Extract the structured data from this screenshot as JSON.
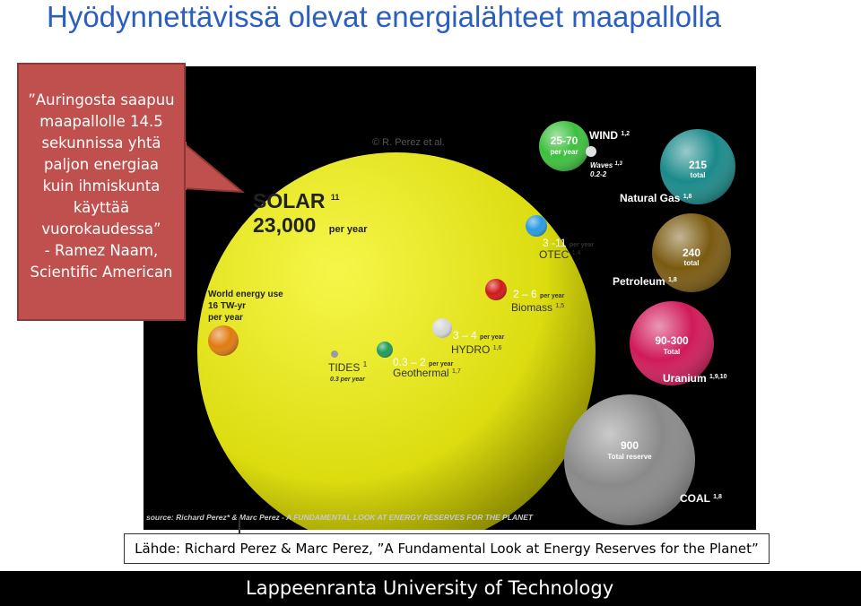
{
  "slide": {
    "title": "Hyödynnettävissä olevat energialähteet maapallolla",
    "callout": {
      "lines": [
        "”Auringosta saapuu",
        "maapallolle 14.5",
        "sekunnissa yhtä",
        "paljon energiaa",
        "kuin ihmiskunta",
        "käyttää",
        "vuorokaudessa”",
        "- Ramez Naam,",
        "Scientific American"
      ]
    },
    "caption": "Lähde: Richard Perez & Marc Perez, ”A Fundamental Look at Energy Reserves for the Planet”",
    "footer": "Lappeenranta University of Technology"
  },
  "figure": {
    "copyright": "© R. Perez et al.",
    "source": "source: Richard Perez* & Marc Perez - A FUNDAMENTAL LOOK AT ENERGY RESERVES FOR THE PLANET",
    "solar": {
      "name": "SOLAR",
      "sup": "11",
      "value": "23,000",
      "unit": "per year",
      "color": "#e8e81a"
    },
    "world_use": {
      "line1": "World energy use",
      "line2": "16 TW-yr",
      "line3": "per year",
      "color": "#e07a10"
    },
    "bubbles": [
      {
        "id": "tides",
        "name": "TIDES",
        "sup": "1",
        "value": "0.3 per year",
        "color": "#9a9aa8"
      },
      {
        "id": "geothermal",
        "name": "Geothermal",
        "sup": "1,7",
        "value": "0.3 – 2",
        "unit": "per year",
        "color": "#1f9a5a"
      },
      {
        "id": "hydro",
        "name": "HYDRO",
        "sup": "1,6",
        "value": "3 – 4",
        "unit": "per year",
        "color": "#d8d8d8"
      },
      {
        "id": "biomass",
        "name": "Biomass",
        "sup": "1,5",
        "value": "2 – 6",
        "unit": "per year",
        "color": "#d01818"
      },
      {
        "id": "otec",
        "name": "OTEC",
        "sup": "1,4",
        "value": "3 -11",
        "unit": "per year",
        "color": "#2a9ae0"
      },
      {
        "id": "wind",
        "name": "WIND",
        "sup": "1,2",
        "value": "25-70",
        "unit": "per year",
        "color": "#3cc03c"
      },
      {
        "id": "waves",
        "name": "Waves",
        "sup": "1,3",
        "value": "0.2-2",
        "color": "#e0e0e0"
      },
      {
        "id": "natural-gas",
        "name": "Natural Gas",
        "sup": "1,8",
        "value": "215",
        "unit": "total",
        "color": "#1a8a8a"
      },
      {
        "id": "petroleum",
        "name": "Petroleum",
        "sup": "1,8",
        "value": "240",
        "unit": "total",
        "color": "#7a5a10"
      },
      {
        "id": "uranium",
        "name": "Uranium",
        "sup": "1,9,10",
        "value": "90-300",
        "unit": "Total",
        "color": "#d01a5a"
      },
      {
        "id": "coal",
        "name": "COAL",
        "sup": "1,8",
        "value": "900",
        "unit": "Total reserve",
        "color": "#8a8a8a"
      }
    ]
  }
}
